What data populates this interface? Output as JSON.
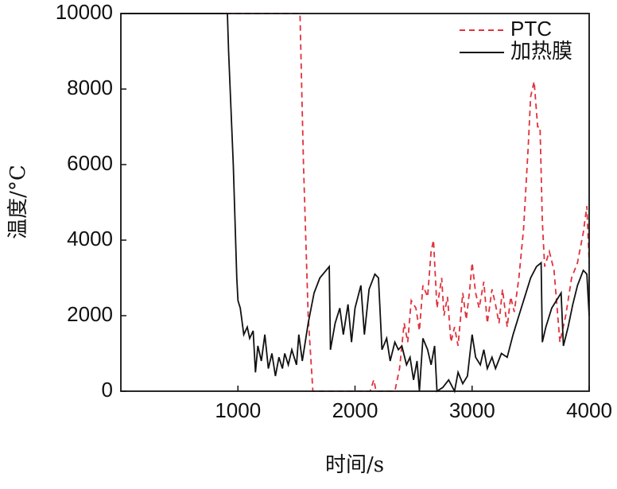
{
  "chart_data": {
    "type": "line",
    "xlabel": "时间/s",
    "ylabel": "温度/°C",
    "xlim": [
      0,
      4000
    ],
    "xticks": [
      1000,
      2000,
      3000,
      4000
    ],
    "ylim": [
      0,
      10000
    ],
    "yticks": [
      0,
      2000,
      4000,
      6000,
      8000,
      10000
    ],
    "legend": "upper right",
    "series": [
      {
        "name": "PTC",
        "color": "#e0323c",
        "dash": true,
        "x": [
          0,
          1530,
          1560,
          1600,
          1640,
          2130,
          2160,
          2180,
          2340,
          2380,
          2420,
          2450,
          2480,
          2520,
          2550,
          2580,
          2620,
          2650,
          2670,
          2700,
          2740,
          2760,
          2790,
          2820,
          2850,
          2880,
          2920,
          2950,
          2980,
          3000,
          3030,
          3060,
          3100,
          3130,
          3170,
          3200,
          3230,
          3260,
          3300,
          3330,
          3360,
          3400,
          3440,
          3480,
          3500,
          3530,
          3560,
          3580,
          3600,
          3620,
          3660,
          3700,
          3750,
          3800,
          3850,
          3900,
          3950,
          3980,
          4000
        ],
        "values": [
          10000,
          10000,
          6000,
          2000,
          0,
          0,
          300,
          0,
          0,
          600,
          1800,
          1300,
          2400,
          2200,
          1600,
          2800,
          2500,
          3700,
          4000,
          2200,
          3000,
          2000,
          2500,
          1300,
          1700,
          1200,
          2600,
          1900,
          2700,
          3400,
          2600,
          2200,
          2900,
          1800,
          2700,
          2300,
          1800,
          2700,
          1700,
          2500,
          2100,
          3000,
          4300,
          6500,
          7800,
          8200,
          7000,
          7000,
          4500,
          3300,
          3700,
          3200,
          1300,
          2000,
          3000,
          3400,
          4200,
          4900,
          3400
        ]
      },
      {
        "name": "加热膜",
        "color": "#111111",
        "dash": false,
        "x": [
          0,
          910,
          920,
          960,
          990,
          1000,
          1020,
          1050,
          1080,
          1100,
          1130,
          1150,
          1170,
          1200,
          1230,
          1260,
          1290,
          1320,
          1350,
          1380,
          1400,
          1430,
          1460,
          1500,
          1520,
          1550,
          1600,
          1650,
          1700,
          1780,
          1790,
          1830,
          1870,
          1900,
          1940,
          1970,
          2000,
          2050,
          2080,
          2120,
          2170,
          2200,
          2230,
          2270,
          2300,
          2340,
          2370,
          2400,
          2440,
          2470,
          2500,
          2530,
          2550,
          2580,
          2620,
          2650,
          2680,
          2700,
          2750,
          2800,
          2850,
          2880,
          2920,
          2960,
          3000,
          3030,
          3070,
          3100,
          3130,
          3170,
          3200,
          3250,
          3300,
          3350,
          3400,
          3450,
          3500,
          3550,
          3590,
          3600,
          3630,
          3680,
          3720,
          3760,
          3780,
          3820,
          3860,
          3900,
          3950,
          3980,
          4000
        ],
        "values": [
          10000,
          10000,
          9000,
          6000,
          3000,
          2400,
          2200,
          1500,
          1700,
          1400,
          1600,
          500,
          1200,
          800,
          1500,
          600,
          1000,
          400,
          900,
          600,
          1000,
          700,
          1100,
          700,
          1500,
          800,
          1800,
          2600,
          3000,
          3300,
          1100,
          1800,
          2200,
          1500,
          2300,
          1300,
          2200,
          2800,
          1500,
          2700,
          3100,
          3000,
          1100,
          1400,
          800,
          1300,
          1100,
          1200,
          700,
          900,
          300,
          800,
          0,
          1400,
          1100,
          700,
          1200,
          0,
          100,
          300,
          0,
          500,
          200,
          400,
          1500,
          900,
          700,
          1100,
          600,
          900,
          600,
          1000,
          900,
          1500,
          2000,
          2500,
          3000,
          3300,
          3400,
          1300,
          1700,
          2200,
          2400,
          2600,
          1200,
          1700,
          2300,
          2800,
          3200,
          3100,
          2000
        ]
      }
    ]
  }
}
